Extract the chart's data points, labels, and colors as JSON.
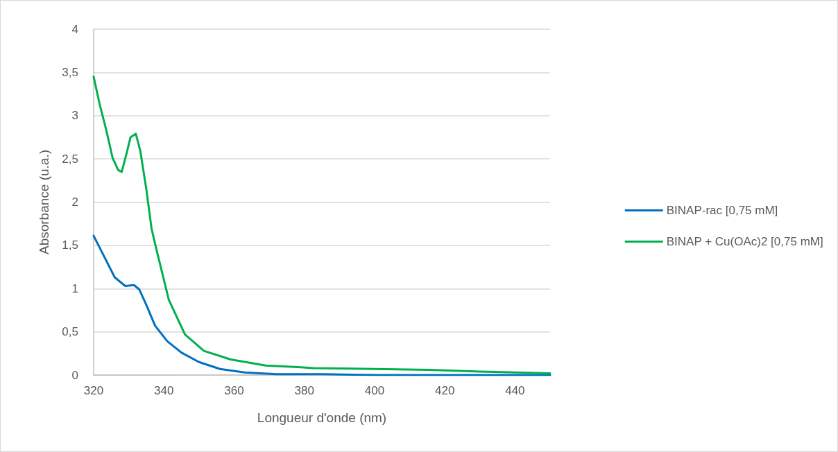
{
  "chart_data": {
    "type": "line",
    "xlabel": "Longueur d'onde (nm)",
    "ylabel": "Absorbance (u.a.)",
    "xlim": [
      320,
      450
    ],
    "xticks": [
      320,
      340,
      360,
      380,
      400,
      420,
      440
    ],
    "ylim": [
      0,
      4
    ],
    "yticks": [
      0,
      {
        "value": 0.5,
        "label": "0,5"
      },
      1,
      {
        "value": 1.5,
        "label": "1,5"
      },
      2,
      {
        "value": 2.5,
        "label": "2,5"
      },
      3,
      {
        "value": 3.5,
        "label": "3,5"
      },
      4
    ],
    "grid": "y",
    "legend": "right",
    "marker": "none",
    "line_style": "solid",
    "series": [
      {
        "name": "BINAP-rac [0,75 mM]",
        "color": "#0070c0",
        "x": [
          320,
          323,
          326,
          329,
          331.5,
          333,
          335,
          337.5,
          341,
          345,
          350,
          356,
          363,
          372,
          385,
          400,
          420,
          450
        ],
        "values": [
          1.61,
          1.37,
          1.13,
          1.03,
          1.04,
          0.99,
          0.81,
          0.57,
          0.39,
          0.26,
          0.15,
          0.07,
          0.03,
          0.01,
          0.01,
          0,
          0,
          0
        ]
      },
      {
        "name": "BINAP + Cu(OAc)2 [0,75 mM]",
        "color": "#00b050",
        "x": [
          320,
          321.6,
          323.6,
          325.4,
          327,
          328,
          329.3,
          330.5,
          332,
          333.3,
          335,
          336.5,
          338.2,
          341.4,
          346,
          351.4,
          359,
          369,
          379,
          382.5,
          400,
          415.6,
          430,
          450
        ],
        "values": [
          3.45,
          3.15,
          2.83,
          2.51,
          2.37,
          2.35,
          2.55,
          2.75,
          2.79,
          2.59,
          2.15,
          1.69,
          1.4,
          0.87,
          0.47,
          0.28,
          0.18,
          0.11,
          0.09,
          0.08,
          0.07,
          0.06,
          0.04,
          0.02
        ]
      }
    ]
  }
}
